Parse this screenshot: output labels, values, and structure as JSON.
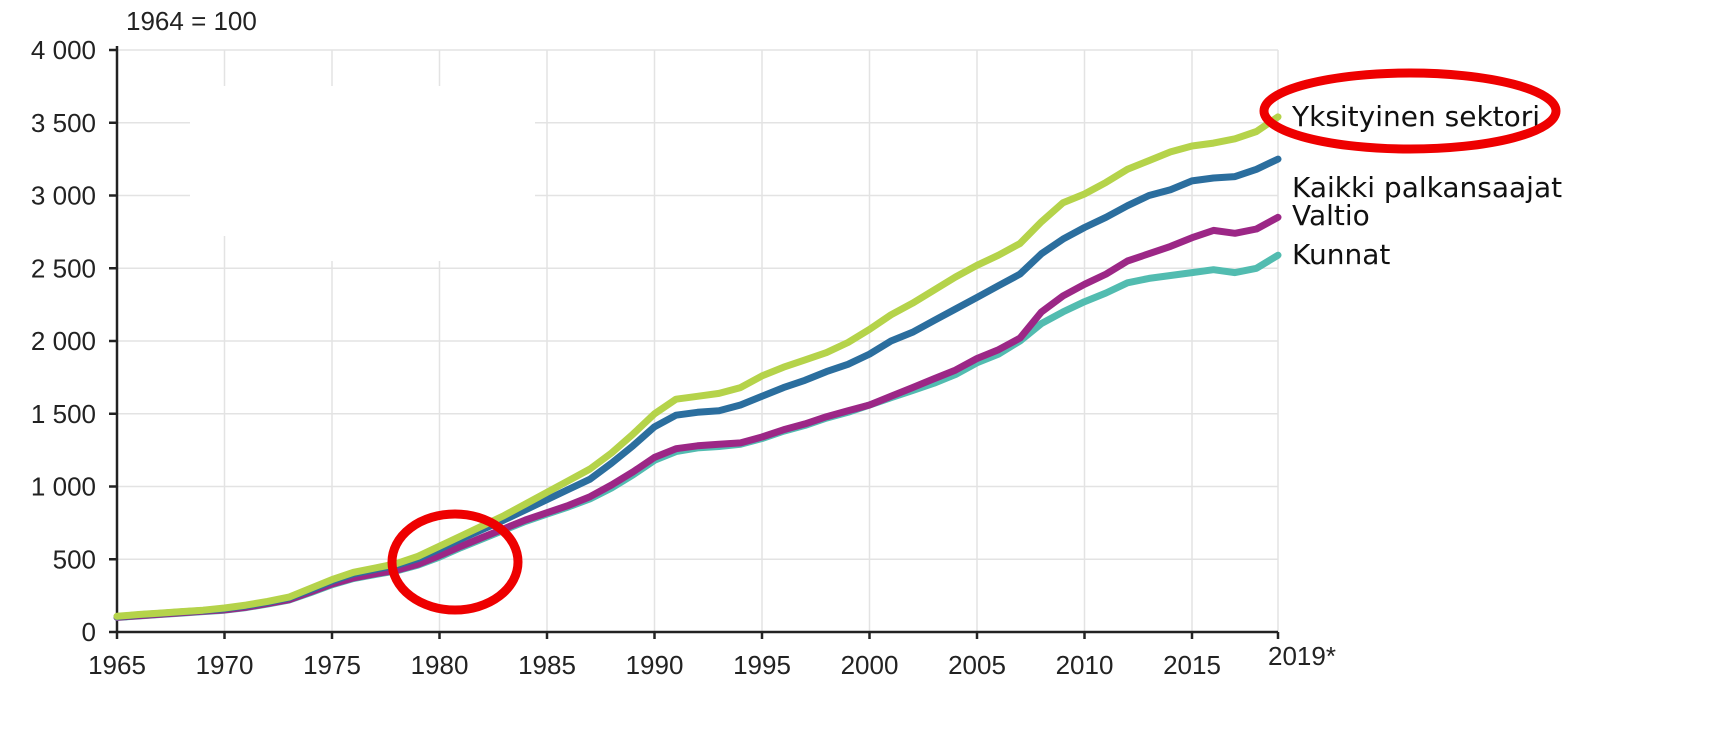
{
  "chart_data": {
    "type": "line",
    "title": "",
    "base_note": "1964  = 100",
    "xlabel": "",
    "ylabel": "",
    "xlim": [
      1965,
      2019
    ],
    "ylim": [
      0,
      4000
    ],
    "x_ticks": [
      "1965",
      "1970",
      "1975",
      "1980",
      "1985",
      "1990",
      "1995",
      "2000",
      "2005",
      "2010",
      "2015",
      "2019*"
    ],
    "y_ticks": [
      "0",
      "500",
      "1 000",
      "1 500",
      "2 000",
      "2 500",
      "3 000",
      "3 500",
      "4 000"
    ],
    "grid": true,
    "legend": "direct labels at right end of lines",
    "x": [
      1965,
      1966,
      1967,
      1968,
      1969,
      1970,
      1971,
      1972,
      1973,
      1974,
      1975,
      1976,
      1977,
      1978,
      1979,
      1980,
      1981,
      1982,
      1983,
      1984,
      1985,
      1986,
      1987,
      1988,
      1989,
      1990,
      1991,
      1992,
      1993,
      1994,
      1995,
      1996,
      1997,
      1998,
      1999,
      2000,
      2001,
      2002,
      2003,
      2004,
      2005,
      2006,
      2007,
      2008,
      2009,
      2010,
      2011,
      2012,
      2013,
      2014,
      2015,
      2016,
      2017,
      2018,
      2019
    ],
    "series": [
      {
        "name": "Yksityinen sektori",
        "color": "#b5d34a",
        "values": [
          108,
          120,
          130,
          140,
          150,
          165,
          185,
          210,
          240,
          300,
          360,
          410,
          440,
          470,
          520,
          590,
          660,
          730,
          800,
          880,
          960,
          1040,
          1120,
          1230,
          1360,
          1500,
          1600,
          1620,
          1640,
          1680,
          1760,
          1820,
          1870,
          1920,
          1990,
          2080,
          2180,
          2260,
          2350,
          2440,
          2520,
          2590,
          2670,
          2820,
          2950,
          3010,
          3090,
          3180,
          3240,
          3300,
          3340,
          3360,
          3390,
          3440,
          3540
        ]
      },
      {
        "name": "Kaikki palkansaajat",
        "color": "#2b6e9e",
        "values": [
          105,
          118,
          128,
          138,
          148,
          160,
          180,
          205,
          235,
          290,
          350,
          400,
          430,
          460,
          505,
          570,
          640,
          705,
          770,
          840,
          910,
          980,
          1050,
          1160,
          1280,
          1410,
          1490,
          1510,
          1520,
          1560,
          1620,
          1680,
          1730,
          1790,
          1840,
          1910,
          2000,
          2060,
          2140,
          2220,
          2300,
          2380,
          2460,
          2600,
          2700,
          2780,
          2850,
          2930,
          3000,
          3040,
          3100,
          3120,
          3130,
          3180,
          3250
        ]
      },
      {
        "name": "Valtio",
        "color": "#9c2786",
        "values": [
          102,
          112,
          122,
          132,
          142,
          152,
          170,
          195,
          222,
          275,
          330,
          372,
          400,
          425,
          465,
          525,
          590,
          650,
          710,
          770,
          820,
          870,
          930,
          1010,
          1100,
          1200,
          1260,
          1280,
          1290,
          1300,
          1340,
          1390,
          1430,
          1480,
          1520,
          1560,
          1620,
          1680,
          1740,
          1800,
          1880,
          1940,
          2020,
          2200,
          2310,
          2390,
          2460,
          2550,
          2600,
          2650,
          2710,
          2760,
          2740,
          2770,
          2850
        ]
      },
      {
        "name": "Kunnat",
        "color": "#52bcb0",
        "values": [
          100,
          110,
          120,
          130,
          140,
          150,
          168,
          192,
          220,
          270,
          325,
          368,
          395,
          420,
          460,
          515,
          580,
          640,
          700,
          760,
          810,
          860,
          915,
          990,
          1080,
          1180,
          1240,
          1265,
          1275,
          1290,
          1330,
          1380,
          1420,
          1470,
          1510,
          1560,
          1610,
          1660,
          1710,
          1770,
          1850,
          1910,
          2000,
          2120,
          2200,
          2270,
          2330,
          2400,
          2430,
          2450,
          2470,
          2490,
          2470,
          2500,
          2590
        ]
      }
    ]
  },
  "annotations": {
    "highlight_color": "#ee0000",
    "circle_1_marks": "Yksityinen sektori",
    "circle_2_marks": "1980"
  }
}
